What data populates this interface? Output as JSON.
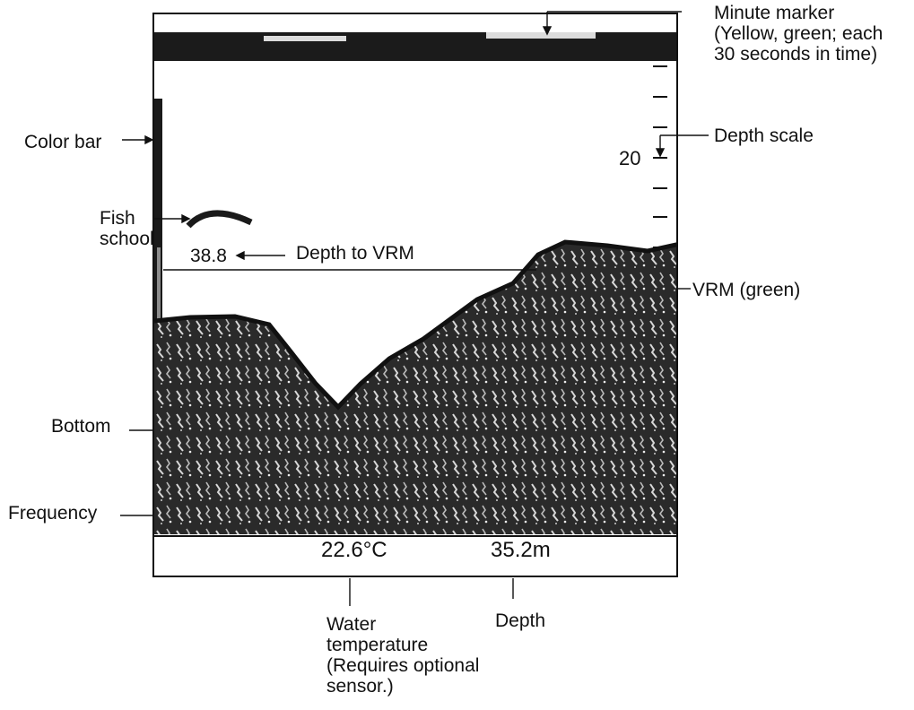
{
  "labels": {
    "minute_marker": [
      "Minute marker",
      "(Yellow, green; each",
      "30 seconds in time)"
    ],
    "color_bar": "Color bar",
    "depth_scale": "Depth scale",
    "fish_school": [
      "Fish",
      "school"
    ],
    "depth_to_vrm": "Depth to VRM",
    "vrm": "VRM (green)",
    "bottom": "Bottom",
    "frequency": "Frequency",
    "water_temperature": [
      "Water",
      "temperature",
      "(Requires optional",
      "sensor.)"
    ],
    "depth": "Depth"
  },
  "screen": {
    "scale_value": "20",
    "vrm_depth": "38.8",
    "water_temp": "22.6°C",
    "depth_readout": "35.2m"
  },
  "colors": {
    "echo": "#1a1a1a",
    "vrm": "green",
    "marker_yellow": "yellow",
    "marker_green": "green"
  }
}
